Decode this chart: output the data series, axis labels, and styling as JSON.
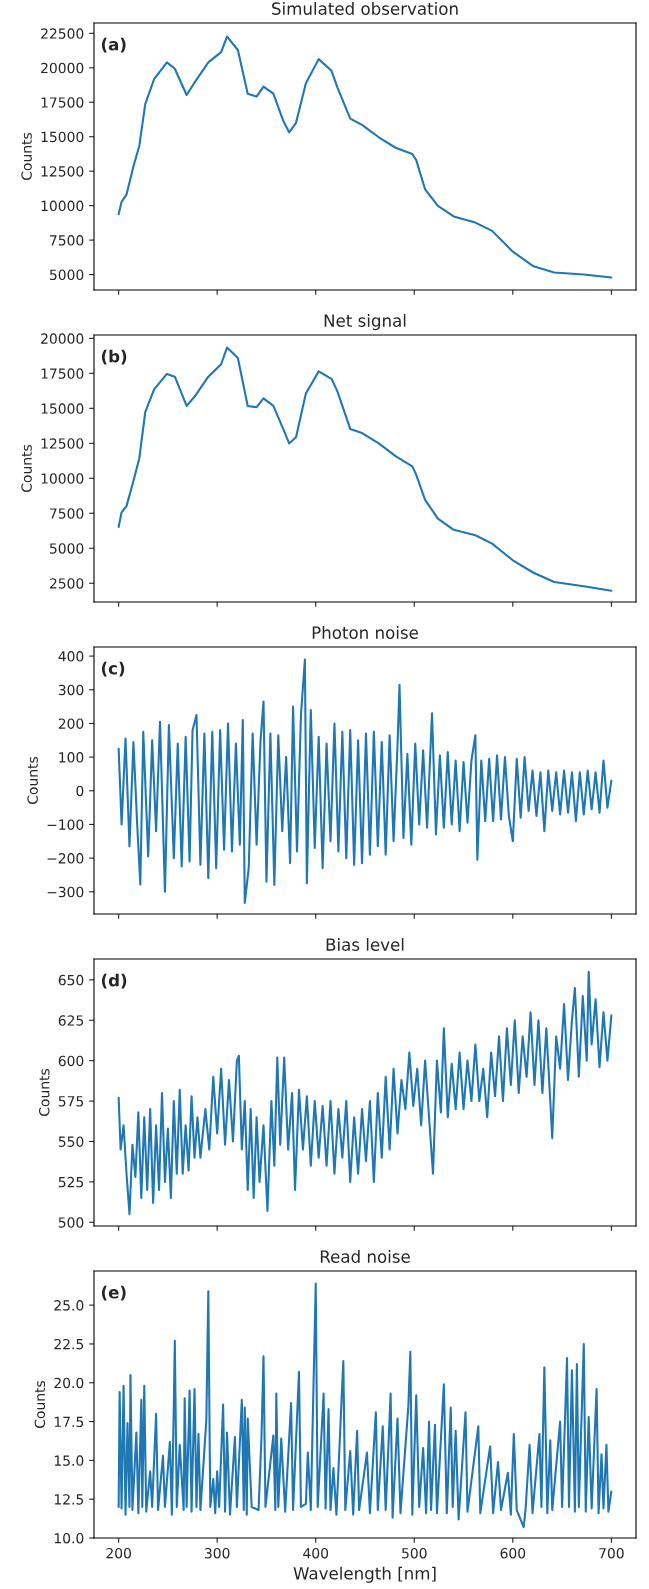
{
  "chart_data": [
    {
      "type": "line",
      "title": "Simulated observation",
      "ylabel": "Counts",
      "annotations": [
        "(a)"
      ],
      "xlim": [
        175,
        725
      ],
      "xticks": [
        200,
        300,
        400,
        500,
        600,
        700
      ],
      "ylim": [
        3880,
        23250
      ],
      "yticks": [
        5000,
        7500,
        10000,
        12500,
        15000,
        17500,
        20000,
        22500
      ],
      "tick_labels": "y",
      "grid": false,
      "legend": false,
      "series": [
        {
          "color": "#1f77b4",
          "x": [
            200,
            203,
            208,
            215,
            221,
            227,
            236,
            249,
            257,
            269,
            278,
            291,
            304,
            310,
            321,
            331,
            340,
            347,
            357,
            367,
            373,
            380,
            390,
            403,
            416,
            422,
            435,
            447,
            464,
            481,
            498,
            502,
            511,
            524,
            540,
            562,
            579,
            600,
            621,
            642,
            672,
            700
          ],
          "values": [
            9375,
            10280,
            10800,
            12840,
            14350,
            17370,
            19180,
            20390,
            19930,
            18030,
            19030,
            20390,
            21140,
            22260,
            21290,
            18120,
            17910,
            18640,
            18120,
            16160,
            15320,
            16010,
            18880,
            20630,
            19780,
            18580,
            16310,
            15860,
            14960,
            14200,
            13750,
            13300,
            11180,
            9980,
            9220,
            8770,
            8170,
            6660,
            5600,
            5150,
            5000,
            4790
          ]
        }
      ]
    },
    {
      "type": "line",
      "title": "Net signal",
      "ylabel": "Counts",
      "annotations": [
        "(b)"
      ],
      "xlim": [
        175,
        725
      ],
      "xticks": [
        200,
        300,
        400,
        500,
        600,
        700
      ],
      "ylim": [
        1160,
        20240
      ],
      "yticks": [
        2500,
        5000,
        7500,
        10000,
        12500,
        15000,
        17500,
        20000
      ],
      "tick_labels": "y",
      "grid": false,
      "legend": false,
      "series": [
        {
          "color": "#1f77b4",
          "x": [
            200,
            203,
            208,
            215,
            221,
            227,
            236,
            249,
            257,
            269,
            278,
            291,
            304,
            310,
            321,
            331,
            340,
            347,
            357,
            367,
            373,
            380,
            390,
            403,
            416,
            422,
            435,
            447,
            464,
            481,
            498,
            502,
            511,
            524,
            540,
            562,
            579,
            600,
            621,
            642,
            672,
            700
          ],
          "values": [
            6520,
            7570,
            8010,
            9800,
            11440,
            14720,
            16360,
            17460,
            17260,
            15170,
            15920,
            17260,
            18150,
            19340,
            18600,
            15170,
            15080,
            15710,
            15170,
            13530,
            12490,
            12930,
            16060,
            17640,
            17110,
            16210,
            13530,
            13230,
            12490,
            11590,
            10850,
            10250,
            8460,
            7120,
            6320,
            5930,
            5330,
            4140,
            3250,
            2590,
            2290,
            1960
          ]
        }
      ]
    },
    {
      "type": "line",
      "title": "Photon noise",
      "ylabel": "Counts",
      "annotations": [
        "(c)"
      ],
      "xlim": [
        175,
        725
      ],
      "xticks": [
        200,
        300,
        400,
        500,
        600,
        700
      ],
      "ylim": [
        -366,
        427
      ],
      "yticks": [
        {
          "value": -300,
          "label": "−300"
        },
        {
          "value": -200,
          "label": "−200"
        },
        {
          "value": -100,
          "label": "−100"
        },
        0,
        100,
        200,
        300,
        400
      ],
      "tick_labels": "y",
      "grid": false,
      "legend": false,
      "series": [
        {
          "color": "#1f77b4",
          "x": [
            200,
            203,
            207,
            211,
            215,
            219,
            222,
            225,
            230,
            234,
            238,
            242,
            247,
            251,
            256,
            260,
            264,
            268,
            272,
            275,
            279,
            283,
            287,
            291,
            295,
            299,
            303,
            307,
            311,
            315,
            319,
            323,
            326,
            328,
            332,
            336,
            340,
            344,
            347,
            350,
            354,
            358,
            362,
            366,
            370,
            374,
            377,
            381,
            385,
            389,
            391,
            395,
            399,
            403,
            407,
            411,
            415,
            419,
            423,
            427,
            431,
            435,
            439,
            443,
            447,
            451,
            455,
            459,
            463,
            467,
            471,
            475,
            479,
            483,
            485,
            489,
            493,
            497,
            501,
            505,
            509,
            513,
            518,
            522,
            526,
            530,
            534,
            538,
            542,
            546,
            550,
            554,
            558,
            562,
            564,
            568,
            572,
            576,
            580,
            584,
            588,
            592,
            596,
            600,
            604,
            608,
            612,
            616,
            620,
            624,
            628,
            632,
            636,
            640,
            644,
            648,
            652,
            656,
            660,
            664,
            668,
            672,
            676,
            680,
            684,
            688,
            692,
            696,
            700
          ],
          "values": [
            125,
            -100,
            155,
            -165,
            145,
            -110,
            -278,
            175,
            -195,
            150,
            -120,
            205,
            -300,
            195,
            -200,
            140,
            -225,
            160,
            -210,
            180,
            225,
            -220,
            170,
            -260,
            175,
            -230,
            180,
            -175,
            200,
            -180,
            140,
            -160,
            210,
            -333,
            -230,
            170,
            -160,
            150,
            265,
            -270,
            170,
            -280,
            165,
            -120,
            100,
            -215,
            250,
            -180,
            225,
            390,
            -275,
            240,
            -170,
            160,
            -230,
            140,
            -150,
            200,
            -180,
            175,
            -200,
            180,
            -220,
            150,
            -215,
            170,
            -190,
            175,
            -165,
            145,
            -190,
            165,
            -150,
            135,
            315,
            -140,
            110,
            -160,
            140,
            -100,
            120,
            -110,
            230,
            -130,
            105,
            -110,
            115,
            -100,
            90,
            -120,
            85,
            -95,
            90,
            165,
            -205,
            90,
            -90,
            95,
            -90,
            105,
            -85,
            100,
            -75,
            -150,
            95,
            -80,
            100,
            -60,
            60,
            -75,
            55,
            -120,
            60,
            -60,
            55,
            -70,
            60,
            -65,
            55,
            -90,
            55,
            -70,
            60,
            -55,
            55,
            -65,
            90,
            -50,
            30
          ]
        }
      ]
    },
    {
      "type": "line",
      "title": "Bias level",
      "ylabel": "Counts",
      "annotations": [
        "(d)"
      ],
      "xlim": [
        175,
        725
      ],
      "xticks": [
        200,
        300,
        400,
        500,
        600,
        700
      ],
      "ylim": [
        497.7,
        662.9
      ],
      "yticks": [
        500,
        525,
        550,
        575,
        600,
        625,
        650
      ],
      "tick_labels": "y",
      "grid": false,
      "legend": false,
      "series": [
        {
          "color": "#1f77b4",
          "x": [
            200,
            202,
            205,
            208,
            211,
            214,
            217,
            220,
            223,
            226,
            229,
            232,
            235,
            238,
            241,
            244,
            247,
            250,
            253,
            256,
            259,
            262,
            265,
            268,
            271,
            274,
            277,
            280,
            283,
            288,
            292,
            296,
            300,
            304,
            308,
            312,
            316,
            320,
            322,
            325,
            328,
            331,
            334,
            337,
            340,
            343,
            347,
            351,
            355,
            358,
            361,
            364,
            368,
            372,
            376,
            379,
            383,
            387,
            391,
            395,
            399,
            403,
            407,
            411,
            415,
            419,
            423,
            427,
            431,
            435,
            439,
            443,
            447,
            451,
            455,
            459,
            463,
            467,
            471,
            475,
            479,
            483,
            487,
            491,
            495,
            499,
            503,
            507,
            511,
            515,
            519,
            523,
            527,
            530,
            534,
            538,
            542,
            546,
            550,
            554,
            558,
            562,
            566,
            570,
            574,
            578,
            582,
            586,
            590,
            594,
            598,
            602,
            606,
            610,
            614,
            618,
            622,
            626,
            630,
            634,
            638,
            640,
            644,
            648,
            652,
            656,
            660,
            663,
            667,
            671,
            675,
            677,
            680,
            684,
            688,
            692,
            696,
            700
          ],
          "values": [
            577,
            545,
            560,
            530,
            505,
            548,
            528,
            568,
            515,
            565,
            520,
            570,
            512,
            560,
            520,
            580,
            525,
            558,
            515,
            575,
            530,
            582,
            530,
            560,
            532,
            578,
            540,
            565,
            540,
            570,
            545,
            590,
            555,
            595,
            548,
            588,
            550,
            600,
            603,
            545,
            575,
            520,
            570,
            515,
            565,
            525,
            560,
            507,
            575,
            535,
            602,
            548,
            602,
            545,
            580,
            520,
            582,
            545,
            578,
            535,
            575,
            540,
            572,
            535,
            575,
            530,
            570,
            540,
            575,
            525,
            565,
            530,
            570,
            538,
            575,
            525,
            580,
            540,
            590,
            545,
            595,
            555,
            588,
            570,
            605,
            572,
            595,
            560,
            600,
            565,
            530,
            600,
            568,
            620,
            565,
            598,
            570,
            605,
            570,
            600,
            575,
            610,
            575,
            595,
            565,
            605,
            578,
            615,
            575,
            620,
            585,
            625,
            580,
            615,
            590,
            630,
            585,
            625,
            580,
            620,
            575,
            552,
            615,
            595,
            635,
            588,
            625,
            645,
            590,
            640,
            600,
            655,
            610,
            638,
            596,
            630,
            600,
            628
          ]
        }
      ]
    },
    {
      "type": "line",
      "title": "Read noise",
      "xlabel": "Wavelength [nm]",
      "ylabel": "Counts",
      "annotations": [
        "(e)"
      ],
      "xlim": [
        175,
        725
      ],
      "xticks": [
        200,
        300,
        400,
        500,
        600,
        700
      ],
      "ylim": [
        10.0,
        27.2
      ],
      "yticks": [
        {
          "value": 10,
          "label": "10.0"
        },
        {
          "value": 12.5,
          "label": "12.5"
        },
        {
          "value": 15,
          "label": "15.0"
        },
        {
          "value": 17.5,
          "label": "17.5"
        },
        {
          "value": 20,
          "label": "20.0"
        },
        {
          "value": 22.5,
          "label": "22.5"
        },
        {
          "value": 25,
          "label": "25.0"
        }
      ],
      "grid": false,
      "legend": false,
      "series": [
        {
          "color": "#1f77b4",
          "x": [
            200,
            201,
            203,
            205,
            207,
            209,
            211,
            212,
            214,
            218,
            220,
            223,
            224,
            226,
            228,
            232,
            234,
            238,
            240,
            245,
            247,
            252,
            254,
            256,
            257,
            259,
            262,
            266,
            267,
            269,
            272,
            274,
            277,
            279,
            281,
            283,
            289,
            291,
            293,
            296,
            298,
            300,
            302,
            306,
            308,
            310,
            313,
            318,
            320,
            325,
            327,
            328,
            330,
            331,
            335,
            342,
            345,
            347,
            349,
            357,
            359,
            360,
            362,
            365,
            369,
            375,
            377,
            383,
            385,
            390,
            392,
            395,
            400,
            402,
            408,
            410,
            413,
            415,
            418,
            421,
            428,
            430,
            435,
            438,
            442,
            444,
            452,
            455,
            461,
            463,
            468,
            471,
            476,
            478,
            483,
            486,
            494,
            496,
            498,
            502,
            505,
            509,
            512,
            515,
            517,
            521,
            523,
            530,
            533,
            537,
            539,
            542,
            545,
            552,
            554,
            565,
            567,
            577,
            580,
            585,
            588,
            595,
            598,
            601,
            604,
            611,
            613,
            617,
            620,
            627,
            629,
            632,
            635,
            638,
            640,
            648,
            650,
            655,
            657,
            660,
            663,
            665,
            667,
            672,
            674,
            677,
            680,
            685,
            687,
            690,
            692,
            695,
            697,
            700
          ],
          "values": [
            12.0,
            19.4,
            11.9,
            19.8,
            11.5,
            17.4,
            12.0,
            20.5,
            11.8,
            16.8,
            11.6,
            18.9,
            12.0,
            19.8,
            11.7,
            14.3,
            12.0,
            18.0,
            11.8,
            15.3,
            12.0,
            16.2,
            11.5,
            18.6,
            22.7,
            12.0,
            16.0,
            11.8,
            19.0,
            12.0,
            19.5,
            11.7,
            19.6,
            12.0,
            16.7,
            11.8,
            17.6,
            25.9,
            12.0,
            13.8,
            11.6,
            14.3,
            12.0,
            18.6,
            11.7,
            16.8,
            11.5,
            16.5,
            12.0,
            18.9,
            11.8,
            18.4,
            11.5,
            17.7,
            12.0,
            11.8,
            16.6,
            21.7,
            12.0,
            16.6,
            11.8,
            19.3,
            12.0,
            16.4,
            11.7,
            18.7,
            11.8,
            20.7,
            12.0,
            12.2,
            15.5,
            11.8,
            26.4,
            12.0,
            19.3,
            11.9,
            18.3,
            11.8,
            14.5,
            11.5,
            21.4,
            11.8,
            15.6,
            11.5,
            16.9,
            11.8,
            15.5,
            11.6,
            18.1,
            11.8,
            17.2,
            11.8,
            19.3,
            11.3,
            17.7,
            11.6,
            18.5,
            22.0,
            11.5,
            19.2,
            12.0,
            15.8,
            11.6,
            17.5,
            11.8,
            17.3,
            11.6,
            19.9,
            11.6,
            18.4,
            12.0,
            16.9,
            11.2,
            18.1,
            11.7,
            17.2,
            11.6,
            15.9,
            11.6,
            14.9,
            11.8,
            14.2,
            11.5,
            16.7,
            11.8,
            10.7,
            11.9,
            16.0,
            11.6,
            16.7,
            12.0,
            21.0,
            11.6,
            16.3,
            11.8,
            17.5,
            12.0,
            21.6,
            12.0,
            20.8,
            11.7,
            21.2,
            12.0,
            22.5,
            11.7,
            17.8,
            11.9,
            19.6,
            11.6,
            15.4,
            11.9,
            16.0,
            11.7,
            13.0
          ]
        }
      ]
    }
  ]
}
